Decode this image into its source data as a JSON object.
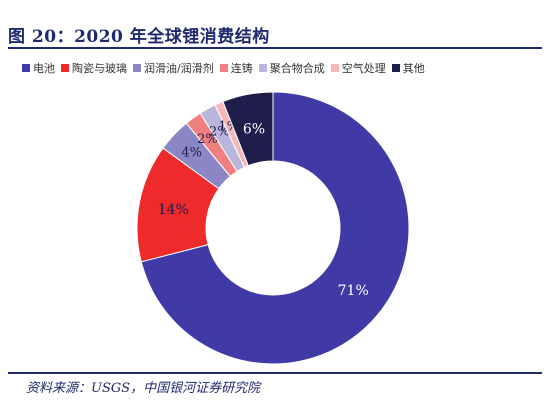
{
  "title": "图 20：2020 年全球锂消费结构",
  "source": "资料来源：USGS，中国银河证券研究院",
  "chart_data": {
    "type": "pie",
    "categories": [
      "电池",
      "陶瓷与玻璃",
      "润滑油/润滑剂",
      "连铸",
      "聚合物合成",
      "空气处理",
      "其他"
    ],
    "values": [
      71,
      14,
      4,
      2,
      2,
      1,
      6
    ],
    "data_labels": [
      "71%",
      "14%",
      "4%",
      "2%",
      "2%",
      "1%",
      "6%"
    ],
    "colors": [
      "#3f3aa6",
      "#ef2a2a",
      "#8b86c6",
      "#f08080",
      "#b9b5dc",
      "#f4b8b8",
      "#1f1d4a"
    ],
    "legend_position": "top"
  }
}
